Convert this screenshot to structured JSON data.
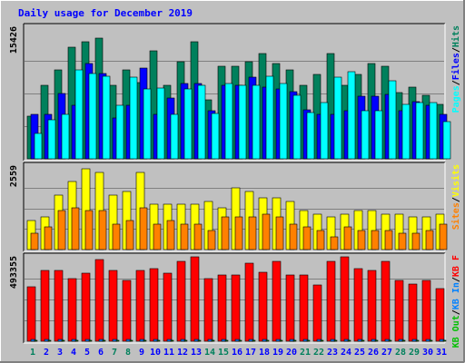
{
  "title": "Daily usage for December 2019",
  "colors": {
    "hits": "#00805c",
    "files": "#0000ff",
    "pages": "#00ffff",
    "visits": "#ffff00",
    "sites": "#ff8000",
    "kb_f": "#ff0000",
    "kb_in": "#0080ff",
    "kb_out": "#00c000",
    "title": "#0000ff",
    "background": "#c0c0c0",
    "grid": "#808080",
    "weekend_label": "#00805c",
    "weekday_label": "#0000ff"
  },
  "chart_data": [
    {
      "type": "bar",
      "panel": "top",
      "ymax_label": "15426",
      "ylim": [
        0,
        15426
      ],
      "legend": [
        {
          "label": "Hits",
          "color_key": "hits"
        },
        {
          "sep": "/"
        },
        {
          "label": "Files",
          "color_key": "files"
        },
        {
          "sep": "/"
        },
        {
          "label": "Pages",
          "color_key": "pages"
        }
      ],
      "categories": [
        "1",
        "2",
        "3",
        "4",
        "5",
        "6",
        "7",
        "8",
        "9",
        "10",
        "11",
        "12",
        "13",
        "14",
        "15",
        "16",
        "17",
        "18",
        "19",
        "20",
        "21",
        "22",
        "23",
        "24",
        "25",
        "26",
        "27",
        "28",
        "29",
        "30",
        "31"
      ],
      "series": [
        {
          "name": "Hits",
          "color_key": "hits",
          "values": [
            5000,
            8700,
            10500,
            13200,
            13800,
            14300,
            8700,
            10500,
            9000,
            12800,
            8700,
            11500,
            13800,
            7000,
            10900,
            10900,
            11500,
            12400,
            11300,
            10500,
            8700,
            10000,
            12400,
            8700,
            10000,
            11300,
            10900,
            7800,
            8500,
            7500,
            6400
          ]
        },
        {
          "name": "Files",
          "color_key": "files",
          "values": [
            5300,
            5300,
            7700,
            6300,
            11300,
            10100,
            4800,
            6300,
            10700,
            5300,
            7200,
            8900,
            8900,
            5700,
            8700,
            8700,
            9600,
            8500,
            8200,
            7900,
            5800,
            5300,
            5300,
            5700,
            7400,
            7400,
            7600,
            5700,
            6800,
            6300,
            5300
          ]
        },
        {
          "name": "Pages",
          "color_key": "pages",
          "values": [
            3000,
            4600,
            5300,
            10500,
            10100,
            9800,
            6300,
            9600,
            8200,
            8400,
            5300,
            8200,
            8700,
            5400,
            8900,
            8700,
            8700,
            9800,
            8900,
            7500,
            5500,
            6600,
            9600,
            10300,
            5700,
            5700,
            9200,
            6400,
            6600,
            6600,
            4400
          ]
        }
      ]
    },
    {
      "type": "bar",
      "panel": "middle",
      "ymax_label": "2559",
      "ylim": [
        0,
        2559
      ],
      "legend": [
        {
          "label": "Visits",
          "color_key": "visits"
        },
        {
          "sep": "/"
        },
        {
          "label": "Sites",
          "color_key": "sites"
        }
      ],
      "categories": [
        "1",
        "2",
        "3",
        "4",
        "5",
        "6",
        "7",
        "8",
        "9",
        "10",
        "11",
        "12",
        "13",
        "14",
        "15",
        "16",
        "17",
        "18",
        "19",
        "20",
        "21",
        "22",
        "23",
        "24",
        "25",
        "26",
        "27",
        "28",
        "29",
        "30",
        "31"
      ],
      "series": [
        {
          "name": "Visits",
          "color_key": "visits",
          "values": [
            900,
            1000,
            1700,
            2100,
            2500,
            2400,
            1700,
            1800,
            2400,
            1400,
            1400,
            1400,
            1400,
            1500,
            1300,
            1900,
            1800,
            1600,
            1600,
            1500,
            1200,
            1100,
            1000,
            1100,
            1200,
            1200,
            1100,
            1100,
            1000,
            1000,
            1100
          ]
        },
        {
          "name": "Sites",
          "color_key": "sites",
          "values": [
            500,
            700,
            1200,
            1300,
            1200,
            1200,
            800,
            900,
            1300,
            800,
            900,
            800,
            800,
            600,
            1000,
            1000,
            1000,
            1100,
            1000,
            800,
            700,
            600,
            400,
            700,
            600,
            600,
            600,
            500,
            500,
            600,
            800
          ]
        }
      ]
    },
    {
      "type": "bar",
      "panel": "bottom",
      "ymax_label": "493355",
      "ylim": [
        0,
        493355
      ],
      "legend": [
        {
          "label": "KB F",
          "color_key": "kb_f"
        },
        {
          "sep": "/"
        },
        {
          "label": "KB In",
          "color_key": "kb_in"
        },
        {
          "sep": "/"
        },
        {
          "label": "KB Out",
          "color_key": "kb_out"
        }
      ],
      "categories": [
        "1",
        "2",
        "3",
        "4",
        "5",
        "6",
        "7",
        "8",
        "9",
        "10",
        "11",
        "12",
        "13",
        "14",
        "15",
        "16",
        "17",
        "18",
        "19",
        "20",
        "21",
        "22",
        "23",
        "24",
        "25",
        "26",
        "27",
        "28",
        "29",
        "30",
        "31"
      ],
      "series": [
        {
          "name": "KB F",
          "color_key": "kb_f",
          "values": [
            320000,
            420000,
            420000,
            370000,
            400000,
            480000,
            420000,
            360000,
            420000,
            430000,
            400000,
            470000,
            500000,
            370000,
            390000,
            390000,
            460000,
            410000,
            470000,
            390000,
            390000,
            330000,
            470000,
            500000,
            430000,
            420000,
            470000,
            360000,
            340000,
            360000,
            310000
          ]
        },
        {
          "name": "KB In",
          "color_key": "kb_in",
          "values": [
            10000,
            10000,
            10000,
            10000,
            10000,
            10000,
            10000,
            10000,
            10000,
            10000,
            10000,
            10000,
            10000,
            10000,
            10000,
            10000,
            10000,
            10000,
            10000,
            10000,
            10000,
            10000,
            10000,
            10000,
            10000,
            10000,
            10000,
            10000,
            10000,
            10000,
            10000
          ]
        },
        {
          "name": "KB Out",
          "color_key": "kb_out",
          "values": [
            3000,
            3000,
            3000,
            3000,
            3000,
            3000,
            3000,
            3000,
            3000,
            3000,
            3000,
            3000,
            3000,
            3000,
            3000,
            3000,
            3000,
            3000,
            3000,
            3000,
            3000,
            3000,
            3000,
            3000,
            3000,
            3000,
            3000,
            3000,
            3000,
            3000,
            3000
          ]
        }
      ]
    }
  ],
  "weekend_days": [
    1,
    7,
    8,
    14,
    15,
    21,
    22,
    28,
    29
  ]
}
